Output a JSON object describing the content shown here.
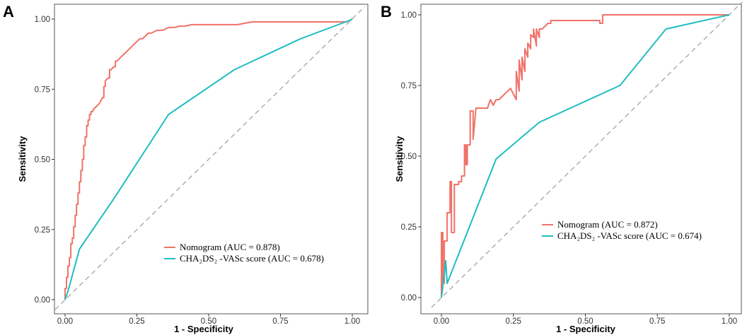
{
  "chart_data": [
    {
      "panel": "A",
      "type": "line",
      "xlabel": "1 - Specificity",
      "ylabel": "Sensitivity",
      "xlim": [
        0,
        1
      ],
      "ylim": [
        0,
        1
      ],
      "xticks": [
        "0.00",
        "0.25",
        "0.50",
        "0.75",
        "1.00"
      ],
      "yticks": [
        "0.00",
        "0.25",
        "0.50",
        "0.75",
        "1.00"
      ],
      "legend_position": "lower-right",
      "reference_line": {
        "style": "dashed",
        "color": "#AAAAAA",
        "from": [
          0,
          0
        ],
        "to": [
          1,
          1
        ]
      },
      "series": [
        {
          "name": "Nomogram (AUC = 0.878)",
          "color": "#F07268",
          "x": [
            0.0,
            0.0,
            0.005,
            0.005,
            0.01,
            0.01,
            0.015,
            0.015,
            0.02,
            0.02,
            0.025,
            0.025,
            0.03,
            0.03,
            0.035,
            0.035,
            0.04,
            0.04,
            0.045,
            0.045,
            0.05,
            0.05,
            0.055,
            0.055,
            0.06,
            0.06,
            0.065,
            0.065,
            0.07,
            0.07,
            0.075,
            0.075,
            0.08,
            0.08,
            0.085,
            0.085,
            0.09,
            0.09,
            0.095,
            0.1,
            0.11,
            0.12,
            0.13,
            0.135,
            0.135,
            0.14,
            0.14,
            0.15,
            0.155,
            0.155,
            0.16,
            0.17,
            0.175,
            0.175,
            0.18,
            0.19,
            0.2,
            0.21,
            0.22,
            0.23,
            0.24,
            0.25,
            0.26,
            0.27,
            0.28,
            0.29,
            0.3,
            0.32,
            0.34,
            0.36,
            0.38,
            0.4,
            0.42,
            0.44,
            0.46,
            0.48,
            0.5,
            0.55,
            0.6,
            0.65,
            0.7,
            0.75,
            0.8,
            0.82,
            0.85,
            0.9,
            0.95,
            0.98,
            1.0
          ],
          "y": [
            0.0,
            0.04,
            0.04,
            0.08,
            0.08,
            0.12,
            0.12,
            0.15,
            0.15,
            0.2,
            0.2,
            0.22,
            0.22,
            0.26,
            0.26,
            0.3,
            0.3,
            0.34,
            0.34,
            0.38,
            0.38,
            0.42,
            0.42,
            0.46,
            0.46,
            0.5,
            0.5,
            0.55,
            0.55,
            0.58,
            0.58,
            0.62,
            0.62,
            0.64,
            0.64,
            0.66,
            0.66,
            0.67,
            0.67,
            0.68,
            0.69,
            0.7,
            0.72,
            0.72,
            0.76,
            0.76,
            0.78,
            0.79,
            0.79,
            0.82,
            0.82,
            0.83,
            0.83,
            0.85,
            0.85,
            0.86,
            0.87,
            0.88,
            0.89,
            0.9,
            0.91,
            0.92,
            0.93,
            0.93,
            0.94,
            0.95,
            0.95,
            0.96,
            0.96,
            0.97,
            0.97,
            0.975,
            0.975,
            0.98,
            0.98,
            0.98,
            0.98,
            0.98,
            0.98,
            0.99,
            0.99,
            0.99,
            0.99,
            0.99,
            0.99,
            0.99,
            0.99,
            0.99,
            1.0
          ]
        },
        {
          "name": "CHA₂DS₂ -VASc score (AUC = 0.678)",
          "color": "#1FBDC2",
          "x": [
            0.0,
            0.01,
            0.05,
            0.17,
            0.36,
            0.59,
            0.82,
            0.99,
            1.0
          ],
          "y": [
            0.0,
            0.03,
            0.18,
            0.36,
            0.66,
            0.82,
            0.93,
            0.995,
            1.0
          ]
        }
      ]
    },
    {
      "panel": "B",
      "type": "line",
      "xlabel": "1 - Specificity",
      "ylabel": "Sensitivity",
      "xlim": [
        0,
        1
      ],
      "ylim": [
        0,
        1
      ],
      "xticks": [
        "0.00",
        "0.25",
        "0.50",
        "0.75",
        "1.00"
      ],
      "yticks": [
        "0.00",
        "0.25",
        "0.50",
        "0.75",
        "1.00"
      ],
      "legend_position": "lower-right",
      "reference_line": {
        "style": "dashed",
        "color": "#AAAAAA",
        "from": [
          0,
          0
        ],
        "to": [
          1,
          1
        ]
      },
      "series": [
        {
          "name": "Nomogram (AUC = 0.872)",
          "color": "#F07268",
          "x": [
            0.0,
            0.0,
            0.005,
            0.005,
            0.01,
            0.01,
            0.02,
            0.02,
            0.03,
            0.03,
            0.035,
            0.035,
            0.045,
            0.045,
            0.06,
            0.06,
            0.07,
            0.07,
            0.08,
            0.08,
            0.085,
            0.085,
            0.09,
            0.09,
            0.1,
            0.1,
            0.11,
            0.11,
            0.12,
            0.15,
            0.16,
            0.17,
            0.18,
            0.19,
            0.2,
            0.22,
            0.24,
            0.26,
            0.26,
            0.27,
            0.27,
            0.28,
            0.28,
            0.29,
            0.29,
            0.3,
            0.3,
            0.31,
            0.31,
            0.32,
            0.32,
            0.33,
            0.33,
            0.34,
            0.34,
            0.35,
            0.37,
            0.38,
            0.38,
            0.4,
            0.45,
            0.5,
            0.55,
            0.55,
            0.56,
            0.56,
            0.57,
            0.6,
            0.7,
            0.8,
            0.9,
            1.0
          ],
          "y": [
            0.0,
            0.23,
            0.23,
            0.05,
            0.05,
            0.2,
            0.2,
            0.3,
            0.3,
            0.41,
            0.41,
            0.23,
            0.23,
            0.4,
            0.4,
            0.41,
            0.41,
            0.43,
            0.43,
            0.54,
            0.54,
            0.47,
            0.47,
            0.54,
            0.54,
            0.66,
            0.66,
            0.56,
            0.67,
            0.67,
            0.67,
            0.7,
            0.68,
            0.7,
            0.7,
            0.72,
            0.74,
            0.7,
            0.8,
            0.73,
            0.84,
            0.77,
            0.85,
            0.8,
            0.88,
            0.85,
            0.9,
            0.88,
            0.93,
            0.92,
            0.95,
            0.89,
            0.95,
            0.92,
            0.95,
            0.95,
            0.97,
            0.97,
            0.98,
            0.98,
            0.98,
            0.98,
            0.98,
            0.97,
            0.97,
            1.0,
            1.0,
            1.0,
            1.0,
            1.0,
            1.0,
            1.0
          ]
        },
        {
          "name": "CHA₂DS₂ -VASc score (AUC = 0.674)",
          "color": "#1FBDC2",
          "x": [
            0.0,
            0.01,
            0.015,
            0.02,
            0.19,
            0.34,
            0.62,
            0.78,
            1.0
          ],
          "y": [
            0.0,
            0.08,
            0.13,
            0.05,
            0.49,
            0.62,
            0.75,
            0.95,
            1.0
          ]
        }
      ]
    }
  ]
}
